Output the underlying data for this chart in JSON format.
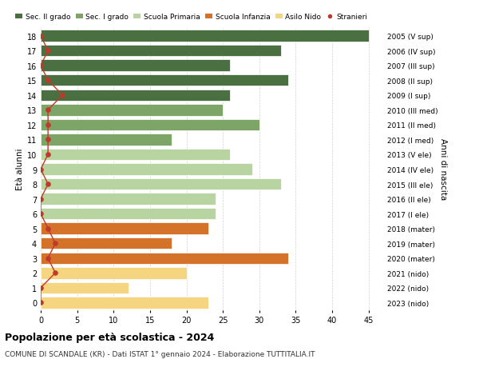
{
  "ages": [
    18,
    17,
    16,
    15,
    14,
    13,
    12,
    11,
    10,
    9,
    8,
    7,
    6,
    5,
    4,
    3,
    2,
    1,
    0
  ],
  "years": [
    "2005 (V sup)",
    "2006 (IV sup)",
    "2007 (III sup)",
    "2008 (II sup)",
    "2009 (I sup)",
    "2010 (III med)",
    "2011 (II med)",
    "2012 (I med)",
    "2013 (V ele)",
    "2014 (IV ele)",
    "2015 (III ele)",
    "2016 (II ele)",
    "2017 (I ele)",
    "2018 (mater)",
    "2019 (mater)",
    "2020 (mater)",
    "2021 (nido)",
    "2022 (nido)",
    "2023 (nido)"
  ],
  "values": [
    45,
    33,
    26,
    34,
    26,
    25,
    30,
    18,
    26,
    29,
    33,
    24,
    24,
    23,
    18,
    34,
    20,
    12,
    23
  ],
  "stranieri": [
    0,
    1,
    0,
    1,
    3,
    1,
    1,
    1,
    1,
    0,
    1,
    0,
    0,
    1,
    2,
    1,
    2,
    0,
    0
  ],
  "colors": {
    "Sec. II grado": "#4a7042",
    "Sec. I grado": "#7da568",
    "Scuola Primaria": "#b8d4a0",
    "Scuola Infanzia": "#d4722a",
    "Asilo Nido": "#f5d580",
    "Stranieri": "#c0392b"
  },
  "bar_colors": [
    "#4a7042",
    "#4a7042",
    "#4a7042",
    "#4a7042",
    "#4a7042",
    "#7da568",
    "#7da568",
    "#7da568",
    "#b8d4a0",
    "#b8d4a0",
    "#b8d4a0",
    "#b8d4a0",
    "#b8d4a0",
    "#d4722a",
    "#d4722a",
    "#d4722a",
    "#f5d580",
    "#f5d580",
    "#f5d580"
  ],
  "legend_labels": [
    "Sec. II grado",
    "Sec. I grado",
    "Scuola Primaria",
    "Scuola Infanzia",
    "Asilo Nido",
    "Stranieri"
  ],
  "legend_colors": [
    "#4a7042",
    "#7da568",
    "#b8d4a0",
    "#d4722a",
    "#f5d580",
    "#c0392b"
  ],
  "title": "Popolazione per età scolastica - 2024",
  "subtitle": "COMUNE DI SCANDALE (KR) - Dati ISTAT 1° gennaio 2024 - Elaborazione TUTTITALIA.IT",
  "ylabel": "Età alunni",
  "right_label": "Anni di nascita",
  "xlim": [
    0,
    47
  ],
  "xticks": [
    0,
    5,
    10,
    15,
    20,
    25,
    30,
    35,
    40,
    45
  ],
  "background_color": "#ffffff",
  "grid_color": "#cccccc"
}
